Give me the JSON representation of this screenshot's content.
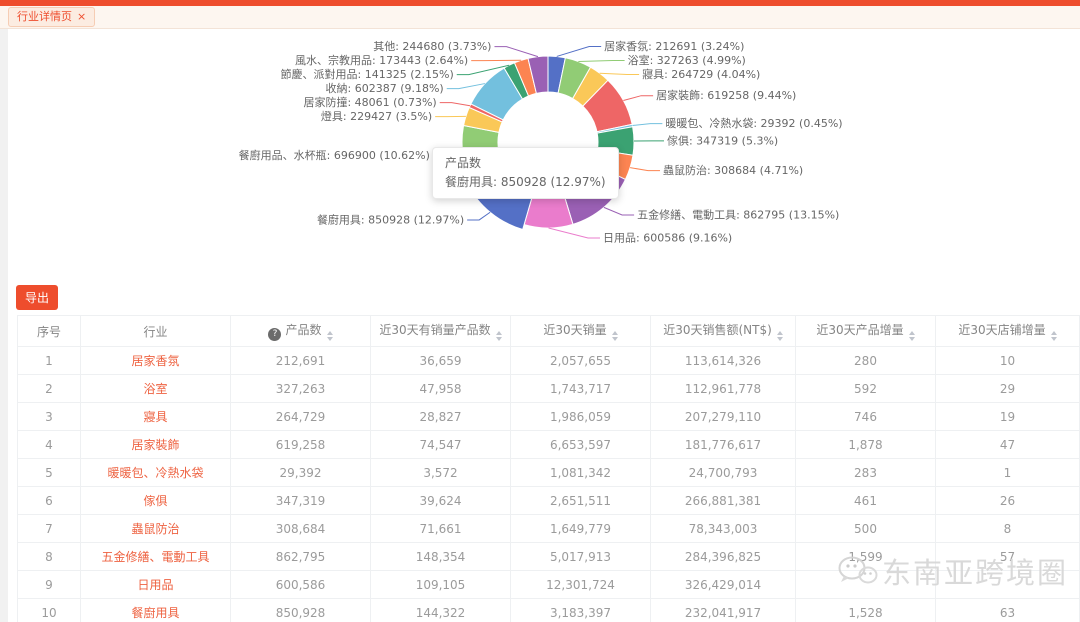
{
  "tab_bar": {
    "tab_label": "行业详情页",
    "close_icon": "×"
  },
  "chart_tooltip": {
    "title": "产品数",
    "line": "餐廚用具: 850928 (12.97%)"
  },
  "export_button": "导出",
  "watermark": {
    "text": "东南亚跨境圈"
  },
  "colors": {
    "brand": "#ee4d2d",
    "link_text": "#ee6342",
    "watermark": "#d7d7d7"
  },
  "chart_data": {
    "type": "pie",
    "subtype": "donut",
    "series_name": "产品数",
    "legend_position": "none",
    "hovered_label": "餐廚用具",
    "segments": [
      {
        "label": "居家香氛",
        "value": 212691,
        "pct": 3.24,
        "color": "#5470c6"
      },
      {
        "label": "浴室",
        "value": 327263,
        "pct": 4.99,
        "color": "#91cc75"
      },
      {
        "label": "寢具",
        "value": 264729,
        "pct": 4.04,
        "color": "#fac858"
      },
      {
        "label": "居家裝飾",
        "value": 619258,
        "pct": 9.44,
        "color": "#ee6666"
      },
      {
        "label": "暖暖包、冷熱水袋",
        "value": 29392,
        "pct": 0.45,
        "color": "#73c0de"
      },
      {
        "label": "傢俱",
        "value": 347319,
        "pct": 5.3,
        "color": "#3ba272"
      },
      {
        "label": "蟲鼠防治",
        "value": 308684,
        "pct": 4.71,
        "color": "#fc8452"
      },
      {
        "label": "五金修繕、電動工具",
        "value": 862795,
        "pct": 13.15,
        "color": "#9a60b4"
      },
      {
        "label": "日用品",
        "value": 600586,
        "pct": 9.16,
        "color": "#ea7ccc"
      },
      {
        "label": "餐廚用具",
        "value": 850928,
        "pct": 12.97,
        "color": "#5470c6"
      },
      {
        "label": "餐廚用品、水杯瓶",
        "value": 696900,
        "pct": 10.62,
        "color": "#91cc75"
      },
      {
        "label": "燈具",
        "value": 229427,
        "pct": 3.5,
        "color": "#fac858"
      },
      {
        "label": "居家防撞",
        "value": 48061,
        "pct": 0.73,
        "color": "#ee6666"
      },
      {
        "label": "收納",
        "value": 602387,
        "pct": 9.18,
        "color": "#73c0de"
      },
      {
        "label": "節慶、派對用品",
        "value": 141325,
        "pct": 2.15,
        "color": "#3ba272"
      },
      {
        "label": "風水、宗教用品",
        "value": 173443,
        "pct": 2.64,
        "color": "#fc8452"
      },
      {
        "label": "其他",
        "value": 244680,
        "pct": 3.73,
        "color": "#9a60b4"
      }
    ]
  },
  "table": {
    "headers": [
      {
        "label": "序号",
        "sortable": false,
        "info": false
      },
      {
        "label": "行业",
        "sortable": false,
        "info": false
      },
      {
        "label": "产品数",
        "sortable": true,
        "info": true
      },
      {
        "label": "近30天有销量产品数",
        "sortable": true,
        "info": false
      },
      {
        "label": "近30天销量",
        "sortable": true,
        "info": false
      },
      {
        "label": "近30天销售额(NT$)",
        "sortable": true,
        "info": false
      },
      {
        "label": "近30天产品增量",
        "sortable": true,
        "info": false
      },
      {
        "label": "近30天店铺增量",
        "sortable": true,
        "info": false
      }
    ],
    "rows": [
      {
        "seq": "1",
        "industry": "居家香氛",
        "cells": [
          "212,691",
          "36,659",
          "2,057,655",
          "113,614,326",
          "280",
          "10"
        ]
      },
      {
        "seq": "2",
        "industry": "浴室",
        "cells": [
          "327,263",
          "47,958",
          "1,743,717",
          "112,961,778",
          "592",
          "29"
        ]
      },
      {
        "seq": "3",
        "industry": "寢具",
        "cells": [
          "264,729",
          "28,827",
          "1,986,059",
          "207,279,110",
          "746",
          "19"
        ]
      },
      {
        "seq": "4",
        "industry": "居家裝飾",
        "cells": [
          "619,258",
          "74,547",
          "6,653,597",
          "181,776,617",
          "1,878",
          "47"
        ]
      },
      {
        "seq": "5",
        "industry": "暖暖包、冷熱水袋",
        "cells": [
          "29,392",
          "3,572",
          "1,081,342",
          "24,700,793",
          "283",
          "1"
        ]
      },
      {
        "seq": "6",
        "industry": "傢俱",
        "cells": [
          "347,319",
          "39,624",
          "2,651,511",
          "266,881,381",
          "461",
          "26"
        ]
      },
      {
        "seq": "7",
        "industry": "蟲鼠防治",
        "cells": [
          "308,684",
          "71,661",
          "1,649,779",
          "78,343,003",
          "500",
          "8"
        ]
      },
      {
        "seq": "8",
        "industry": "五金修繕、電動工具",
        "cells": [
          "862,795",
          "148,354",
          "5,017,913",
          "284,396,825",
          "1,599",
          "57"
        ]
      },
      {
        "seq": "9",
        "industry": "日用品",
        "cells": [
          "600,586",
          "109,105",
          "12,301,724",
          "326,429,014",
          "",
          ""
        ]
      },
      {
        "seq": "10",
        "industry": "餐廚用具",
        "cells": [
          "850,928",
          "144,322",
          "3,183,397",
          "232,041,917",
          "1,528",
          "63"
        ]
      }
    ]
  }
}
